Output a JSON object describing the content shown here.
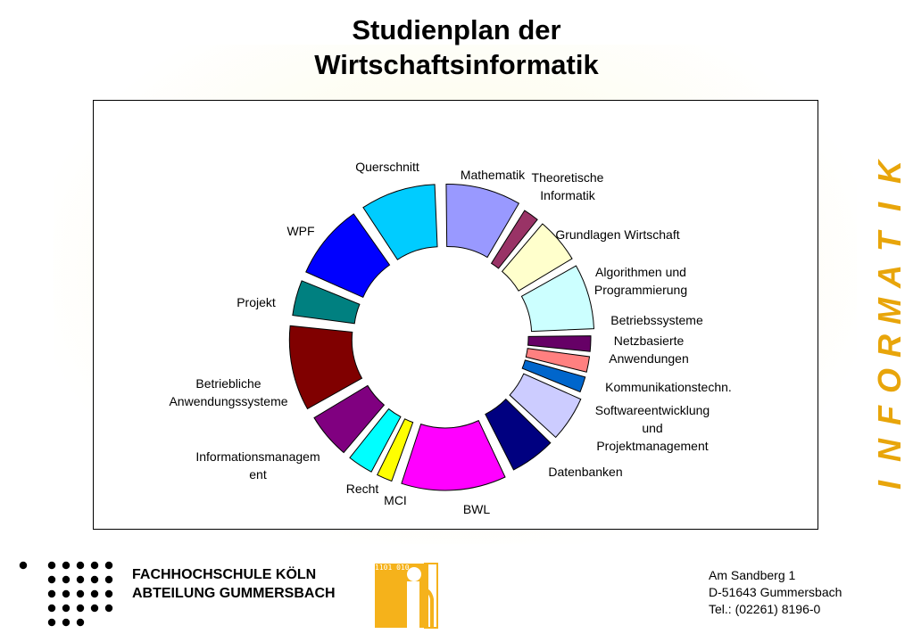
{
  "title": "Studienplan der Wirtschaftsinformatik",
  "title_lines": [
    "Studienplan der",
    "Wirtschaftsinformatik"
  ],
  "side_word": "INFORMATIK",
  "colors": {
    "accent": "#e8a50a",
    "frame": "#000000"
  },
  "footer": {
    "institution_line1": "FACHHOCHSCHULE KÖLN",
    "institution_line2": "ABTEILUNG GUMMERSBACH",
    "address_line1": "Am Sandberg 1",
    "address_line2": "D-51643 Gummersbach",
    "address_line3": "Tel.: (02261) 8196-0",
    "logo_binary": "1101 010"
  },
  "chart_data": {
    "type": "pie",
    "variant": "donut-exploded",
    "title": "",
    "slices": [
      {
        "label": "Mathematik",
        "value": 16,
        "color": "#9999ff"
      },
      {
        "label": "Theoretische Informatik",
        "value": 4,
        "color": "#993366"
      },
      {
        "label": "Grundlagen Wirtschaft",
        "value": 10,
        "color": "#ffffcc"
      },
      {
        "label": "Algorithmen und Programmierung",
        "value": 14,
        "color": "#ccffff"
      },
      {
        "label": "Betriebssysteme",
        "value": 4,
        "color": "#660066"
      },
      {
        "label": "Netzbasierte Anwendungen",
        "value": 4,
        "color": "#ff8080"
      },
      {
        "label": "Kommunikationstechn.",
        "value": 4,
        "color": "#0066cc"
      },
      {
        "label": "Softwareentwicklung und Projektmanagement",
        "value": 10,
        "color": "#ccccff"
      },
      {
        "label": "Datenbanken",
        "value": 10,
        "color": "#000080"
      },
      {
        "label": "BWL",
        "value": 22,
        "color": "#ff00ff"
      },
      {
        "label": "MCI",
        "value": 4,
        "color": "#ffff00"
      },
      {
        "label": "Recht",
        "value": 6,
        "color": "#00ffff"
      },
      {
        "label": "Informationsmanagement",
        "value": 10,
        "color": "#800080"
      },
      {
        "label": "Betriebliche Anwendungssysteme",
        "value": 18,
        "color": "#800000"
      },
      {
        "label": "Projekt",
        "value": 8,
        "color": "#008080"
      },
      {
        "label": "WPF",
        "value": 16,
        "color": "#0000ff"
      },
      {
        "label": "Querschnitt",
        "value": 16,
        "color": "#00ccff"
      }
    ],
    "labels_display": [
      [
        "Mathematik"
      ],
      [
        "Theoretische",
        "Informatik"
      ],
      [
        "Grundlagen Wirtschaft"
      ],
      [
        "Algorithmen und",
        "Programmierung"
      ],
      [
        "Betriebssysteme"
      ],
      [
        "Netzbasierte",
        "Anwendungen"
      ],
      [
        "Kommunikationstechn."
      ],
      [
        "Softwareentwicklung",
        "und",
        "Projektmanagement"
      ],
      [
        "Datenbanken"
      ],
      [
        "BWL"
      ],
      [
        "MCI"
      ],
      [
        "Recht"
      ],
      [
        "Informationsmanagem",
        "ent"
      ],
      [
        "Betriebliche",
        "Anwendungssysteme"
      ],
      [
        "Projekt"
      ],
      [
        "WPF"
      ],
      [
        "Querschnitt"
      ]
    ],
    "legend": "none"
  }
}
